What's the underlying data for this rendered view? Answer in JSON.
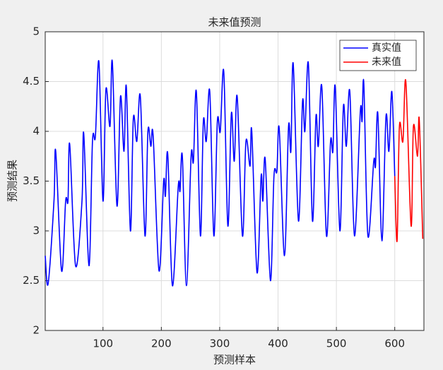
{
  "chart_data": {
    "type": "line",
    "title": "未来值预测",
    "x_label": "预测样本",
    "y_label": "预测结果",
    "xlim": [
      1,
      650
    ],
    "ylim": [
      2,
      5
    ],
    "xticks": [
      100,
      200,
      300,
      400,
      500,
      600
    ],
    "yticks": [
      2,
      2.5,
      3,
      3.5,
      4,
      4.5,
      5
    ],
    "grid": true,
    "legend_position": "upper right",
    "series": [
      {
        "name": "真实值",
        "color": "#0000ff",
        "x": [
          1,
          6,
          16,
          19,
          29,
          36,
          40,
          43,
          53,
          64,
          67,
          76,
          82,
          87,
          93,
          100,
          105,
          112,
          116,
          124,
          130,
          136,
          140,
          147,
          152,
          158,
          164,
          172,
          177,
          182,
          186,
          196,
          204,
          207,
          211,
          219,
          229,
          232,
          236,
          243,
          251,
          255,
          260,
          267,
          272,
          277,
          283,
          290,
          296,
          301,
          307,
          314,
          320,
          325,
          330,
          339,
          345,
          352,
          355,
          364,
          371,
          374,
          378,
          387,
          393,
          398,
          402,
          411,
          418,
          422,
          426,
          435,
          442,
          446,
          452,
          459,
          465,
          469,
          475,
          483,
          490,
          494,
          498,
          506,
          512,
          517,
          523,
          531,
          541,
          544,
          547,
          554,
          564,
          567,
          571,
          578,
          585,
          590,
          595,
          600
        ],
        "values": [
          2.75,
          2.47,
          3.3,
          3.8,
          2.6,
          3.3,
          3.3,
          3.87,
          2.65,
          3.3,
          3.98,
          2.65,
          3.9,
          3.95,
          4.7,
          3.3,
          4.42,
          4.05,
          4.7,
          3.25,
          4.35,
          3.8,
          4.45,
          3.0,
          4.13,
          3.9,
          4.35,
          2.95,
          4.0,
          3.85,
          3.95,
          2.6,
          3.5,
          3.35,
          3.77,
          2.45,
          3.45,
          3.4,
          3.75,
          2.45,
          3.75,
          3.7,
          4.4,
          2.95,
          4.1,
          3.9,
          4.4,
          2.95,
          4.1,
          4.0,
          4.6,
          3.05,
          4.18,
          3.7,
          4.35,
          2.95,
          3.9,
          3.65,
          4.0,
          2.58,
          3.55,
          3.3,
          3.72,
          2.5,
          3.55,
          3.6,
          4.03,
          2.75,
          4.05,
          3.8,
          4.68,
          3.1,
          4.3,
          4.0,
          4.68,
          3.1,
          4.15,
          3.85,
          4.45,
          2.95,
          3.9,
          3.8,
          4.45,
          3.0,
          4.25,
          3.85,
          4.4,
          2.95,
          4.2,
          4.1,
          4.48,
          2.95,
          3.7,
          3.65,
          4.18,
          2.9,
          4.15,
          3.8,
          4.4,
          3.55
        ]
      },
      {
        "name": "未来值",
        "color": "#ff0000",
        "x": [
          600,
          604,
          608,
          614,
          619,
          628,
          632,
          639,
          642,
          648
        ],
        "values": [
          3.55,
          2.9,
          4.05,
          3.9,
          4.5,
          3.05,
          4.05,
          3.75,
          4.12,
          2.92
        ]
      }
    ]
  }
}
